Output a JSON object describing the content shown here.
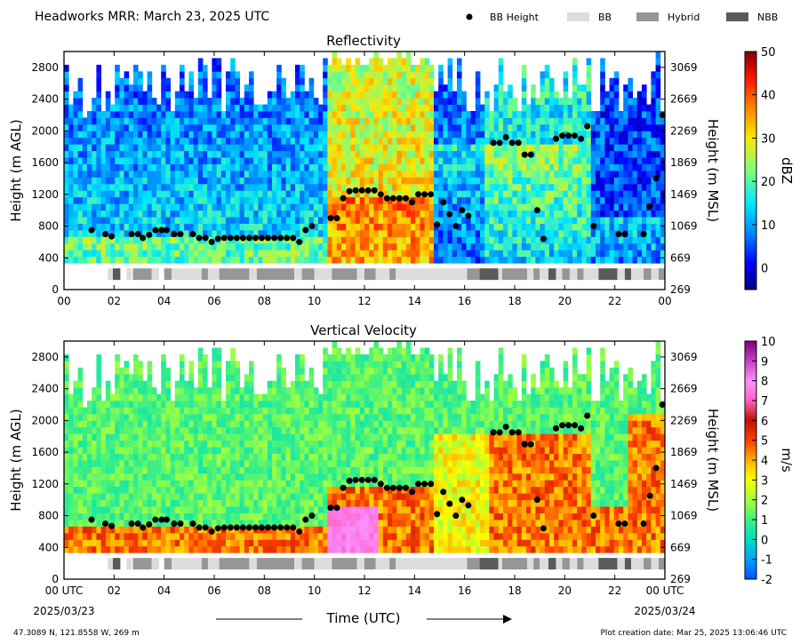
{
  "header": {
    "title": "Headworks MRR:  March 23, 2025 UTC"
  },
  "legend": {
    "items": [
      {
        "label": "BB Height",
        "color": "#000000",
        "kind": "marker"
      },
      {
        "label": "BB",
        "color": "#dcdcdc",
        "kind": "swatch"
      },
      {
        "label": "Hybrid",
        "color": "#969696",
        "kind": "swatch"
      },
      {
        "label": "NBB",
        "color": "#5a5a5a",
        "kind": "swatch"
      }
    ]
  },
  "footer": {
    "location": "47.3089 N, 121.8558 W, 269 m",
    "created": "Plot creation date: Mar 25, 2025 13:06:46 UTC",
    "xlabel": "Time (UTC)",
    "start_label": "00 UTC",
    "start_date": "2025/03/23",
    "end_label": "00 UTC",
    "end_date": "2025/03/24"
  },
  "chart_data": [
    {
      "type": "heatmap",
      "title": "Reflectivity",
      "ylabel": "Height (m AGL)",
      "ylabel_right": "Height (m MSL)",
      "xlim": [
        0,
        24
      ],
      "ylim": [
        0,
        3000
      ],
      "x_ticks": [
        "00",
        "02",
        "04",
        "06",
        "08",
        "10",
        "12",
        "14",
        "16",
        "18",
        "20",
        "22",
        "00"
      ],
      "y_ticks": [
        0,
        400,
        800,
        1200,
        1600,
        2000,
        2400,
        2800
      ],
      "y_ticks_right": [
        269,
        669,
        1069,
        1469,
        1869,
        2269,
        2669,
        3069
      ],
      "colorbar": {
        "label": "dBZ",
        "min": -5,
        "max": 50,
        "ticks": [
          0,
          10,
          20,
          30,
          40,
          50
        ]
      },
      "bb_height": [
        [
          1.1,
          750
        ],
        [
          1.65,
          700
        ],
        [
          1.9,
          670
        ],
        [
          2.7,
          700
        ],
        [
          2.95,
          700
        ],
        [
          3.15,
          650
        ],
        [
          3.4,
          690
        ],
        [
          3.65,
          750
        ],
        [
          3.9,
          750
        ],
        [
          4.1,
          750
        ],
        [
          4.4,
          700
        ],
        [
          4.65,
          700
        ],
        [
          5.15,
          700
        ],
        [
          5.4,
          650
        ],
        [
          5.65,
          650
        ],
        [
          5.9,
          600
        ],
        [
          6.15,
          640
        ],
        [
          6.4,
          650
        ],
        [
          6.65,
          650
        ],
        [
          6.9,
          650
        ],
        [
          7.15,
          650
        ],
        [
          7.4,
          650
        ],
        [
          7.65,
          650
        ],
        [
          7.9,
          650
        ],
        [
          8.15,
          650
        ],
        [
          8.4,
          650
        ],
        [
          8.65,
          650
        ],
        [
          8.9,
          650
        ],
        [
          9.15,
          650
        ],
        [
          9.4,
          600
        ],
        [
          9.65,
          750
        ],
        [
          9.9,
          800
        ],
        [
          10.65,
          900
        ],
        [
          10.9,
          900
        ],
        [
          11.15,
          1150
        ],
        [
          11.4,
          1240
        ],
        [
          11.65,
          1250
        ],
        [
          11.9,
          1250
        ],
        [
          12.15,
          1250
        ],
        [
          12.4,
          1250
        ],
        [
          12.65,
          1200
        ],
        [
          12.9,
          1150
        ],
        [
          13.15,
          1150
        ],
        [
          13.4,
          1150
        ],
        [
          13.65,
          1150
        ],
        [
          13.9,
          1100
        ],
        [
          14.15,
          1200
        ],
        [
          14.4,
          1200
        ],
        [
          14.65,
          1200
        ],
        [
          14.9,
          820
        ],
        [
          15.15,
          1100
        ],
        [
          15.4,
          950
        ],
        [
          15.65,
          800
        ],
        [
          15.9,
          1000
        ],
        [
          16.15,
          930
        ],
        [
          17.15,
          1850
        ],
        [
          17.4,
          1850
        ],
        [
          17.65,
          1920
        ],
        [
          17.9,
          1850
        ],
        [
          18.15,
          1850
        ],
        [
          18.4,
          1700
        ],
        [
          18.65,
          1700
        ],
        [
          18.9,
          1000
        ],
        [
          19.15,
          640
        ],
        [
          19.65,
          1900
        ],
        [
          19.9,
          1940
        ],
        [
          20.15,
          1940
        ],
        [
          20.4,
          1940
        ],
        [
          20.65,
          1900
        ],
        [
          20.9,
          2060
        ],
        [
          21.15,
          800
        ],
        [
          22.15,
          700
        ],
        [
          22.4,
          700
        ],
        [
          23.15,
          700
        ],
        [
          23.4,
          1050
        ],
        [
          23.65,
          1400
        ],
        [
          23.9,
          2200
        ]
      ],
      "bb_type": [
        [
          1.75,
          1.95,
          "BB"
        ],
        [
          1.95,
          2.25,
          "NBB"
        ],
        [
          2.5,
          2.7,
          "BB"
        ],
        [
          2.75,
          3.5,
          "Hybrid"
        ],
        [
          3.5,
          3.8,
          "BB"
        ],
        [
          4.0,
          4.3,
          "Hybrid"
        ],
        [
          4.3,
          5.5,
          "BB"
        ],
        [
          5.5,
          5.75,
          "Hybrid"
        ],
        [
          5.75,
          6.2,
          "BB"
        ],
        [
          6.2,
          7.4,
          "Hybrid"
        ],
        [
          7.4,
          7.7,
          "BB"
        ],
        [
          7.7,
          9.2,
          "Hybrid"
        ],
        [
          9.2,
          9.5,
          "BB"
        ],
        [
          9.5,
          10.0,
          "Hybrid"
        ],
        [
          10.0,
          10.7,
          "BB"
        ],
        [
          10.7,
          11.7,
          "Hybrid"
        ],
        [
          11.7,
          12.0,
          "BB"
        ],
        [
          12.0,
          12.45,
          "Hybrid"
        ],
        [
          12.45,
          13.0,
          "BB"
        ],
        [
          13.0,
          13.25,
          "Hybrid"
        ],
        [
          13.25,
          16.1,
          "BB"
        ],
        [
          16.1,
          16.6,
          "Hybrid"
        ],
        [
          16.6,
          17.35,
          "NBB"
        ],
        [
          17.35,
          17.5,
          "BB"
        ],
        [
          17.5,
          18.5,
          "Hybrid"
        ],
        [
          18.5,
          18.75,
          "BB"
        ],
        [
          18.75,
          19.0,
          "Hybrid"
        ],
        [
          19.0,
          19.35,
          "BB"
        ],
        [
          19.35,
          19.65,
          "NBB"
        ],
        [
          19.65,
          19.9,
          "BB"
        ],
        [
          19.9,
          20.2,
          "Hybrid"
        ],
        [
          20.2,
          20.5,
          "BB"
        ],
        [
          20.5,
          20.75,
          "Hybrid"
        ],
        [
          20.75,
          21.35,
          "BB"
        ],
        [
          21.35,
          22.1,
          "NBB"
        ],
        [
          22.1,
          22.4,
          "BB"
        ],
        [
          22.4,
          22.65,
          "NBB"
        ],
        [
          22.65,
          23.15,
          "BB"
        ],
        [
          23.15,
          23.45,
          "Hybrid"
        ],
        [
          23.45,
          23.75,
          "BB"
        ],
        [
          23.75,
          24.0,
          "Hybrid"
        ]
      ]
    },
    {
      "type": "heatmap",
      "title": "Vertical Velocity",
      "ylabel": "Height (m AGL)",
      "ylabel_right": "Height (m MSL)",
      "xlim": [
        0,
        24
      ],
      "ylim": [
        0,
        3000
      ],
      "x_ticks": [
        "00 UTC",
        "02",
        "04",
        "06",
        "08",
        "10",
        "12",
        "14",
        "16",
        "18",
        "20",
        "22",
        "00 UTC"
      ],
      "y_ticks": [
        0,
        400,
        800,
        1200,
        1600,
        2000,
        2400,
        2800
      ],
      "y_ticks_right": [
        269,
        669,
        1069,
        1469,
        1869,
        2269,
        2669,
        3069
      ],
      "colorbar": {
        "label": "m/s",
        "min": -2,
        "max": 10,
        "ticks": [
          -2,
          -1,
          0,
          1,
          2,
          3,
          4,
          5,
          6,
          7,
          8,
          9,
          10
        ]
      }
    }
  ]
}
